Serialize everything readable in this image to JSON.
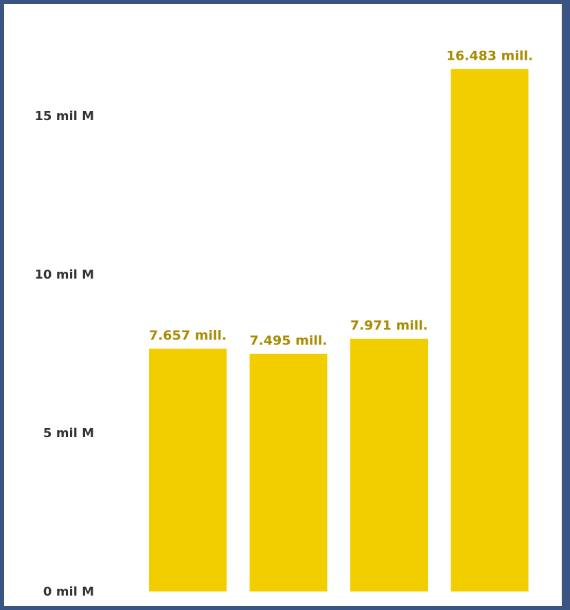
{
  "colors": {
    "frame": "#3a5582",
    "background": "#ffffff",
    "bar": "#f2ce00",
    "data_label": "#a88b00",
    "tick_label": "#333333"
  },
  "chart_data": {
    "type": "bar",
    "title": "",
    "xlabel": "",
    "ylabel": "",
    "categories": [
      "",
      "",
      "",
      ""
    ],
    "values": [
      7.657,
      7.495,
      7.971,
      16.483
    ],
    "value_unit": "millions",
    "data_labels": [
      "7.657 mill.",
      "7.495 mill.",
      "7.971 mill.",
      "16.483 mill."
    ],
    "ylim": [
      0,
      17.5
    ],
    "y_ticks": [
      {
        "value": 0,
        "label": "0 mil M"
      },
      {
        "value": 5,
        "label": "5 mil M"
      },
      {
        "value": 10,
        "label": "10 mil M"
      },
      {
        "value": 15,
        "label": "15 mil M"
      }
    ],
    "grid": false,
    "legend": "none"
  }
}
